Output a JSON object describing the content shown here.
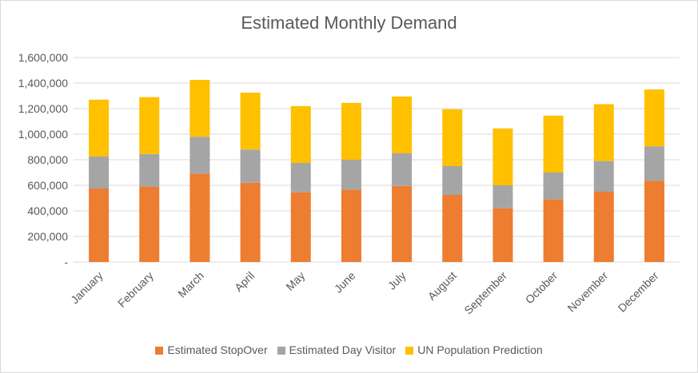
{
  "chart_data": {
    "type": "bar",
    "stacked": true,
    "title": "Estimated Monthly Demand",
    "categories": [
      "January",
      "February",
      "March",
      "April",
      "May",
      "June",
      "July",
      "August",
      "September",
      "October",
      "November",
      "December"
    ],
    "series": [
      {
        "name": "Estimated StopOver",
        "color": "#ed7d31",
        "values": [
          575000,
          590000,
          690000,
          620000,
          545000,
          565000,
          595000,
          525000,
          420000,
          490000,
          550000,
          635000
        ]
      },
      {
        "name": "Estimated Day Visitor",
        "color": "#a5a5a5",
        "values": [
          250000,
          255000,
          290000,
          260000,
          230000,
          235000,
          255000,
          225000,
          180000,
          210000,
          240000,
          270000
        ]
      },
      {
        "name": "UN Population Prediction",
        "color": "#ffc000",
        "values": [
          445000,
          445000,
          445000,
          445000,
          445000,
          445000,
          445000,
          445000,
          445000,
          445000,
          445000,
          445000
        ]
      }
    ],
    "ylim": [
      0,
      1600000
    ],
    "y_ticks": [
      0,
      200000,
      400000,
      600000,
      800000,
      1000000,
      1200000,
      1400000,
      1600000
    ],
    "y_tick_labels": [
      "-",
      "200,000",
      "400,000",
      "600,000",
      "800,000",
      "1,000,000",
      "1,200,000",
      "1,400,000",
      "1,600,000"
    ],
    "grid": true,
    "legend_position": "bottom",
    "xlabel": "",
    "ylabel": ""
  }
}
